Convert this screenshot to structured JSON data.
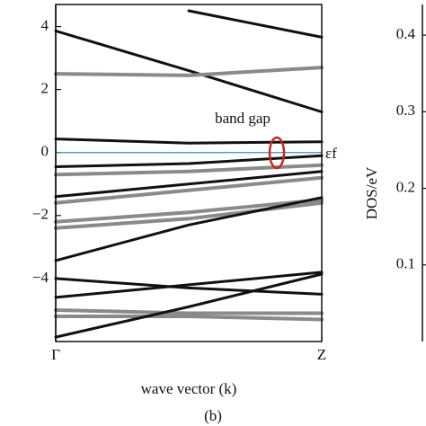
{
  "chart_data": [
    {
      "type": "line",
      "xlabel": "wave vector (k)",
      "caption": "(b)",
      "annotations": [
        "band gap",
        "εf"
      ],
      "x": [
        0,
        0.5,
        1
      ],
      "xlim": [
        0,
        1
      ],
      "xticks": [
        {
          "value": 0,
          "label": "Γ"
        },
        {
          "value": 1,
          "label": "Z"
        }
      ],
      "ylim": [
        -6,
        4.7
      ],
      "yticks": [
        {
          "value": -4,
          "label": "−4"
        },
        {
          "value": -2,
          "label": "−2"
        },
        0,
        2,
        4
      ],
      "fermi": {
        "value": 0,
        "color": "#3a8fb7"
      },
      "series": [
        {
          "color": "#111111",
          "values": [
            3.86,
            2.6,
            1.29
          ]
        },
        {
          "color": "#111111",
          "values": [
            null,
            4.5,
            3.66
          ]
        },
        {
          "color": "#8a8a8a",
          "values": [
            2.5,
            2.45,
            2.7
          ]
        },
        {
          "color": "#111111",
          "values": [
            0.43,
            0.3,
            0.34
          ]
        },
        {
          "color": "#111111",
          "values": [
            -0.45,
            -0.35,
            -0.1
          ]
        },
        {
          "color": "#8a8a8a",
          "values": [
            -0.7,
            -0.6,
            -0.4
          ]
        },
        {
          "color": "#111111",
          "values": [
            -1.4,
            -1.0,
            -0.6
          ]
        },
        {
          "color": "#8a8a8a",
          "values": [
            -1.6,
            -1.2,
            -0.8
          ]
        },
        {
          "color": "#8a8a8a",
          "values": [
            -2.2,
            -1.9,
            -1.5
          ]
        },
        {
          "color": "#8a8a8a",
          "values": [
            -2.4,
            -2.1,
            -1.6
          ]
        },
        {
          "color": "#111111",
          "values": [
            -3.43,
            -2.3,
            -1.43
          ]
        },
        {
          "color": "#111111",
          "values": [
            -4.0,
            -4.3,
            -4.5
          ]
        },
        {
          "color": "#111111",
          "values": [
            -4.6,
            -4.2,
            -3.8
          ]
        },
        {
          "color": "#8a8a8a",
          "values": [
            -5.0,
            -5.1,
            -5.1
          ]
        },
        {
          "color": "#8a8a8a",
          "values": [
            -5.2,
            -5.2,
            -5.3
          ]
        },
        {
          "color": "#111111",
          "values": [
            -5.86,
            -4.9,
            -3.86
          ]
        }
      ]
    },
    {
      "type": "line",
      "ylabel": "DOS/eV",
      "ylim": [
        0,
        0.44
      ],
      "yticks": [
        0.1,
        0.2,
        0.3,
        0.4
      ],
      "series": []
    }
  ]
}
